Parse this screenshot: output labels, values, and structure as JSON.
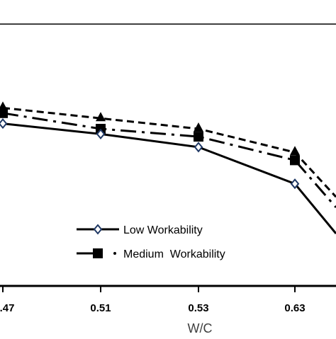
{
  "chart_data": {
    "type": "line",
    "xlabel": "W/C",
    "categories": [
      ".47",
      "0.51",
      "0.53",
      "0.63",
      ""
    ],
    "ylabel": "",
    "ylim": [
      0,
      100
    ],
    "grid": false,
    "legend_position": "bottom",
    "series": [
      {
        "name": "Low Workability",
        "marker": "diamond",
        "line_style": "solid",
        "color": "#000000",
        "marker_fill": "#ffffff",
        "marker_stroke": "#1f3864",
        "values": [
          62,
          58,
          53,
          39,
          20
        ]
      },
      {
        "name": "Medium  Workability",
        "marker": "square",
        "line_style": "dash-dot",
        "color": "#000000",
        "marker_fill": "#000000",
        "values": [
          66,
          60,
          57,
          48,
          30
        ]
      },
      {
        "name": "",
        "marker": "triangle",
        "line_style": "dashed",
        "color": "#000000",
        "marker_fill": "#000000",
        "values": [
          68,
          64,
          60,
          51,
          34
        ]
      }
    ]
  }
}
